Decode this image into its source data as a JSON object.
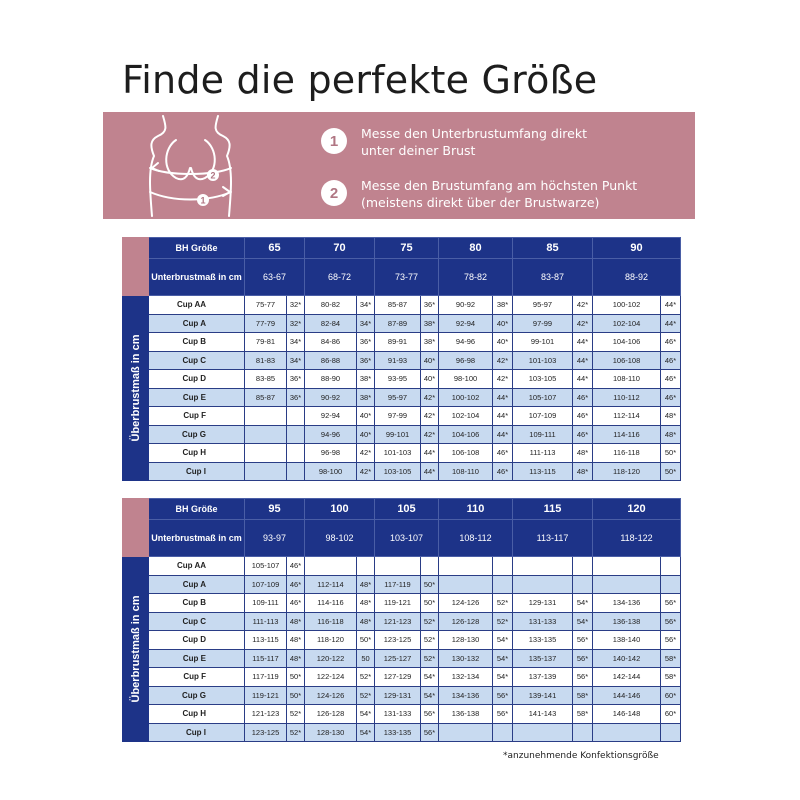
{
  "title": "Finde die perfekte Größe",
  "steps": [
    {
      "num": "1",
      "line1": "Messe den Unterbrustumfang direkt",
      "line2": "unter deiner Brust"
    },
    {
      "num": "2",
      "line1": "Messe den Brustumfang am höchsten Punkt",
      "line2": "(meistens direkt über der Brustwarze)"
    }
  ],
  "figure_labels": {
    "upper": "2",
    "lower": "1"
  },
  "side_label": "Überbrustmaß in cm",
  "header_labels": {
    "bh": "BH Größe",
    "under": "Unterbrustmaß in cm"
  },
  "colors": {
    "pink": "#c0838f",
    "navy": "#1d3388",
    "row_alt": "#c8daf0"
  },
  "tables": [
    {
      "sizes": [
        "65",
        "70",
        "75",
        "80",
        "85",
        "90"
      ],
      "unterbrust": [
        "63-67",
        "68-72",
        "73-77",
        "78-82",
        "83-87",
        "88-92"
      ],
      "rows": [
        {
          "cup": "Cup AA",
          "cells": [
            [
              "75-77",
              "32*"
            ],
            [
              "80-82",
              "34*"
            ],
            [
              "85-87",
              "36*"
            ],
            [
              "90-92",
              "38*"
            ],
            [
              "95-97",
              "42*"
            ],
            [
              "100-102",
              "44*"
            ]
          ]
        },
        {
          "cup": "Cup A",
          "cells": [
            [
              "77-79",
              "32*"
            ],
            [
              "82-84",
              "34*"
            ],
            [
              "87-89",
              "38*"
            ],
            [
              "92-94",
              "40*"
            ],
            [
              "97-99",
              "42*"
            ],
            [
              "102-104",
              "44*"
            ]
          ]
        },
        {
          "cup": "Cup B",
          "cells": [
            [
              "79-81",
              "34*"
            ],
            [
              "84-86",
              "36*"
            ],
            [
              "89-91",
              "38*"
            ],
            [
              "94-96",
              "40*"
            ],
            [
              "99-101",
              "44*"
            ],
            [
              "104-106",
              "46*"
            ]
          ]
        },
        {
          "cup": "Cup C",
          "cells": [
            [
              "81-83",
              "34*"
            ],
            [
              "86-88",
              "36*"
            ],
            [
              "91-93",
              "40*"
            ],
            [
              "96-98",
              "42*"
            ],
            [
              "101-103",
              "44*"
            ],
            [
              "106-108",
              "46*"
            ]
          ]
        },
        {
          "cup": "Cup D",
          "cells": [
            [
              "83-85",
              "36*"
            ],
            [
              "88-90",
              "38*"
            ],
            [
              "93-95",
              "40*"
            ],
            [
              "98-100",
              "42*"
            ],
            [
              "103-105",
              "44*"
            ],
            [
              "108-110",
              "46*"
            ]
          ]
        },
        {
          "cup": "Cup E",
          "cells": [
            [
              "85-87",
              "36*"
            ],
            [
              "90-92",
              "38*"
            ],
            [
              "95-97",
              "42*"
            ],
            [
              "100-102",
              "44*"
            ],
            [
              "105-107",
              "46*"
            ],
            [
              "110-112",
              "46*"
            ]
          ]
        },
        {
          "cup": "Cup F",
          "cells": [
            [
              "",
              ""
            ],
            [
              "92-94",
              "40*"
            ],
            [
              "97-99",
              "42*"
            ],
            [
              "102-104",
              "44*"
            ],
            [
              "107-109",
              "46*"
            ],
            [
              "112-114",
              "48*"
            ]
          ]
        },
        {
          "cup": "Cup G",
          "cells": [
            [
              "",
              ""
            ],
            [
              "94-96",
              "40*"
            ],
            [
              "99-101",
              "42*"
            ],
            [
              "104-106",
              "44*"
            ],
            [
              "109-111",
              "46*"
            ],
            [
              "114-116",
              "48*"
            ]
          ]
        },
        {
          "cup": "Cup H",
          "cells": [
            [
              "",
              ""
            ],
            [
              "96-98",
              "42*"
            ],
            [
              "101-103",
              "44*"
            ],
            [
              "106-108",
              "46*"
            ],
            [
              "111-113",
              "48*"
            ],
            [
              "116-118",
              "50*"
            ]
          ]
        },
        {
          "cup": "Cup I",
          "cells": [
            [
              "",
              ""
            ],
            [
              "98-100",
              "42*"
            ],
            [
              "103-105",
              "44*"
            ],
            [
              "108-110",
              "46*"
            ],
            [
              "113-115",
              "48*"
            ],
            [
              "118-120",
              "50*"
            ]
          ]
        }
      ]
    },
    {
      "sizes": [
        "95",
        "100",
        "105",
        "110",
        "115",
        "120"
      ],
      "unterbrust": [
        "93-97",
        "98-102",
        "103-107",
        "108-112",
        "113-117",
        "118-122"
      ],
      "rows": [
        {
          "cup": "Cup AA",
          "cells": [
            [
              "105-107",
              "46*"
            ],
            [
              "",
              ""
            ],
            [
              "",
              ""
            ],
            [
              "",
              ""
            ],
            [
              "",
              ""
            ],
            [
              "",
              ""
            ]
          ]
        },
        {
          "cup": "Cup A",
          "cells": [
            [
              "107-109",
              "46*"
            ],
            [
              "112-114",
              "48*"
            ],
            [
              "117-119",
              "50*"
            ],
            [
              "",
              ""
            ],
            [
              "",
              ""
            ],
            [
              "",
              ""
            ]
          ]
        },
        {
          "cup": "Cup B",
          "cells": [
            [
              "109-111",
              "46*"
            ],
            [
              "114-116",
              "48*"
            ],
            [
              "119-121",
              "50*"
            ],
            [
              "124-126",
              "52*"
            ],
            [
              "129-131",
              "54*"
            ],
            [
              "134-136",
              "56*"
            ]
          ]
        },
        {
          "cup": "Cup C",
          "cells": [
            [
              "111-113",
              "48*"
            ],
            [
              "116-118",
              "48*"
            ],
            [
              "121-123",
              "52*"
            ],
            [
              "126-128",
              "52*"
            ],
            [
              "131-133",
              "54*"
            ],
            [
              "136-138",
              "56*"
            ]
          ]
        },
        {
          "cup": "Cup D",
          "cells": [
            [
              "113-115",
              "48*"
            ],
            [
              "118-120",
              "50*"
            ],
            [
              "123-125",
              "52*"
            ],
            [
              "128-130",
              "54*"
            ],
            [
              "133-135",
              "56*"
            ],
            [
              "138-140",
              "56*"
            ]
          ]
        },
        {
          "cup": "Cup E",
          "cells": [
            [
              "115-117",
              "48*"
            ],
            [
              "120-122",
              "50"
            ],
            [
              "125-127",
              "52*"
            ],
            [
              "130-132",
              "54*"
            ],
            [
              "135-137",
              "56*"
            ],
            [
              "140-142",
              "58*"
            ]
          ]
        },
        {
          "cup": "Cup F",
          "cells": [
            [
              "117-119",
              "50*"
            ],
            [
              "122-124",
              "52*"
            ],
            [
              "127-129",
              "54*"
            ],
            [
              "132-134",
              "54*"
            ],
            [
              "137-139",
              "56*"
            ],
            [
              "142-144",
              "58*"
            ]
          ]
        },
        {
          "cup": "Cup G",
          "cells": [
            [
              "119-121",
              "50*"
            ],
            [
              "124-126",
              "52*"
            ],
            [
              "129-131",
              "54*"
            ],
            [
              "134-136",
              "56*"
            ],
            [
              "139-141",
              "58*"
            ],
            [
              "144-146",
              "60*"
            ]
          ]
        },
        {
          "cup": "Cup H",
          "cells": [
            [
              "121-123",
              "52*"
            ],
            [
              "126-128",
              "54*"
            ],
            [
              "131-133",
              "56*"
            ],
            [
              "136-138",
              "56*"
            ],
            [
              "141-143",
              "58*"
            ],
            [
              "146-148",
              "60*"
            ]
          ]
        },
        {
          "cup": "Cup I",
          "cells": [
            [
              "123-125",
              "52*"
            ],
            [
              "128-130",
              "54*"
            ],
            [
              "133-135",
              "56*"
            ],
            [
              "",
              ""
            ],
            [
              "",
              ""
            ],
            [
              "",
              ""
            ]
          ]
        }
      ]
    }
  ],
  "footnote": "*anzunehmende Konfektionsgröße"
}
